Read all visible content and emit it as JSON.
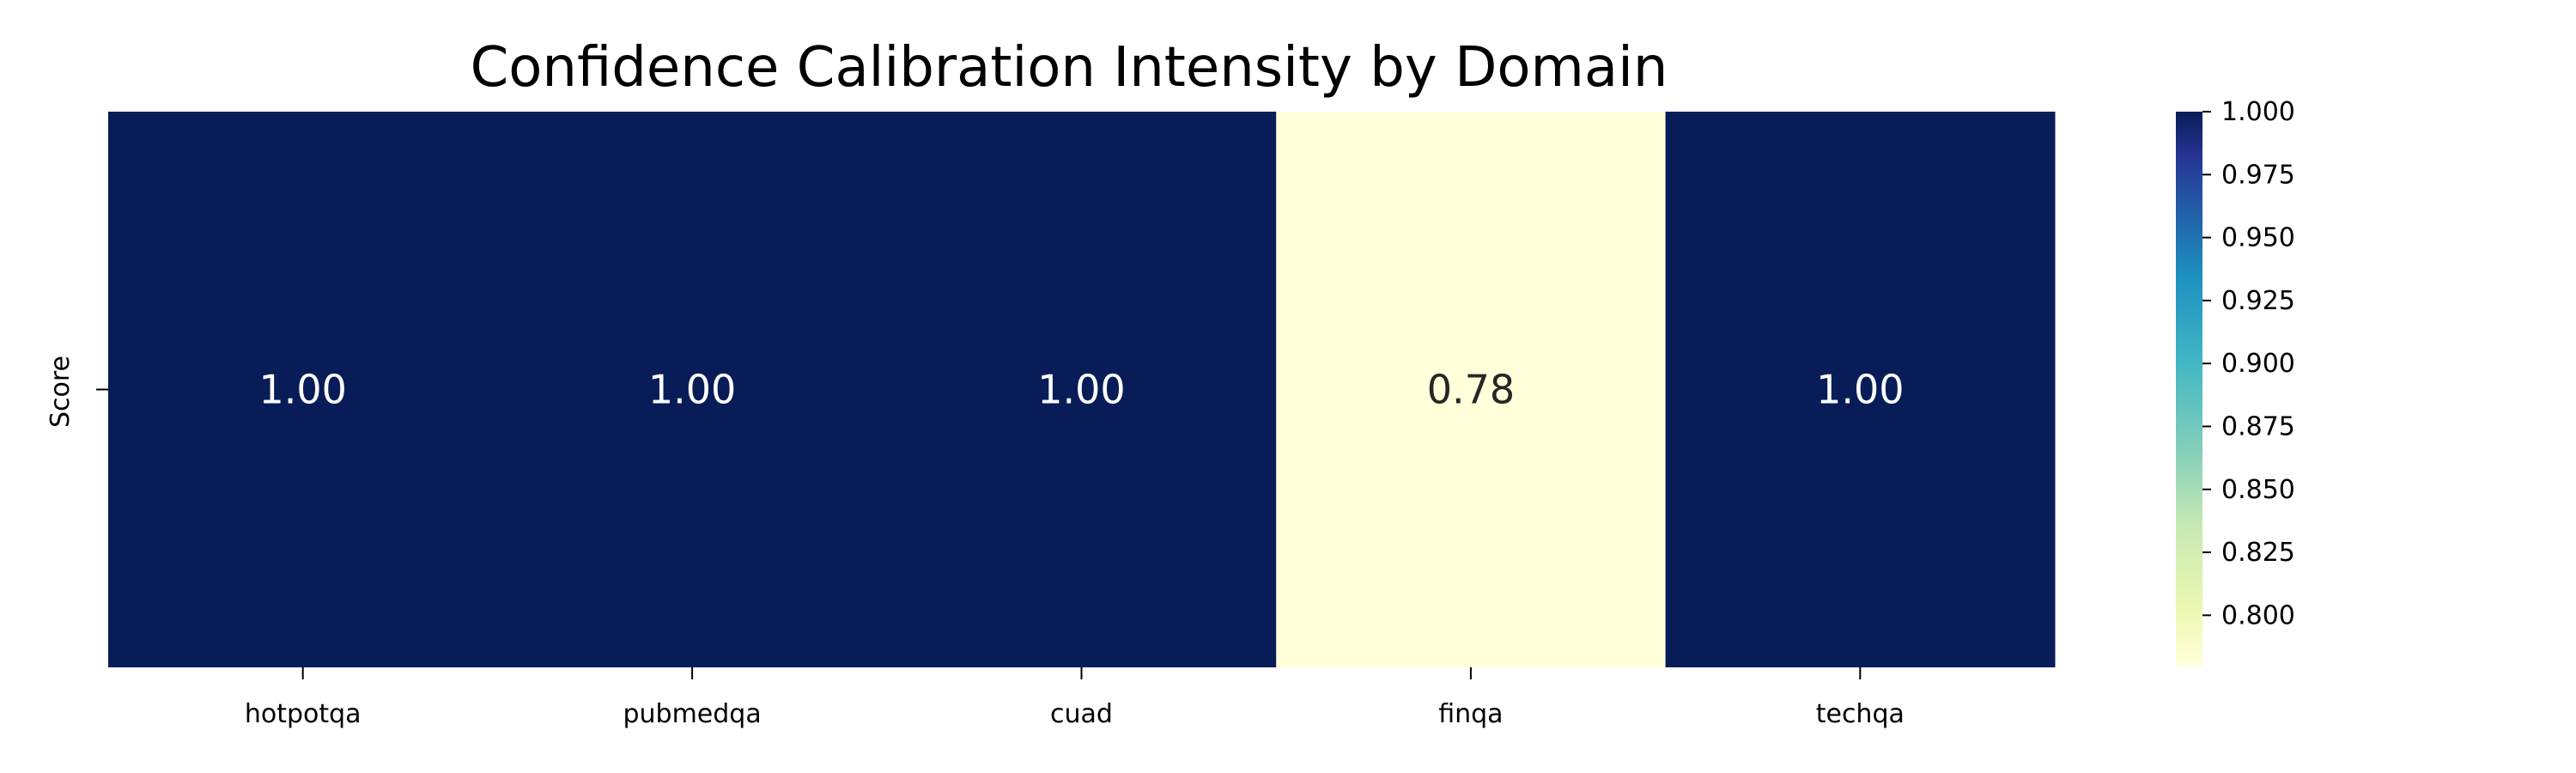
{
  "chart_data": {
    "type": "heatmap",
    "title": "Confidence Calibration Intensity by Domain",
    "ylabel": "Score",
    "row_labels": [
      "Score"
    ],
    "categories": [
      "hotpotqa",
      "pubmedqa",
      "cuad",
      "finqa",
      "techqa"
    ],
    "values": [
      [
        1.0,
        1.0,
        1.0,
        0.78,
        1.0
      ]
    ],
    "annotations": [
      [
        "1.00",
        "1.00",
        "1.00",
        "0.78",
        "1.00"
      ]
    ],
    "colormap": "YlGnBu",
    "colorbar": {
      "range": [
        0.78,
        1.0
      ],
      "ticks": [
        1.0,
        0.975,
        0.95,
        0.925,
        0.9,
        0.875,
        0.85,
        0.825,
        0.8
      ],
      "tick_labels": [
        "1.000",
        "0.975",
        "0.950",
        "0.925",
        "0.900",
        "0.875",
        "0.850",
        "0.825",
        "0.800"
      ]
    },
    "colors": {
      "high": "#081d58",
      "low": "#ffffd9"
    },
    "grid": false,
    "legend": "colorbar-right"
  }
}
